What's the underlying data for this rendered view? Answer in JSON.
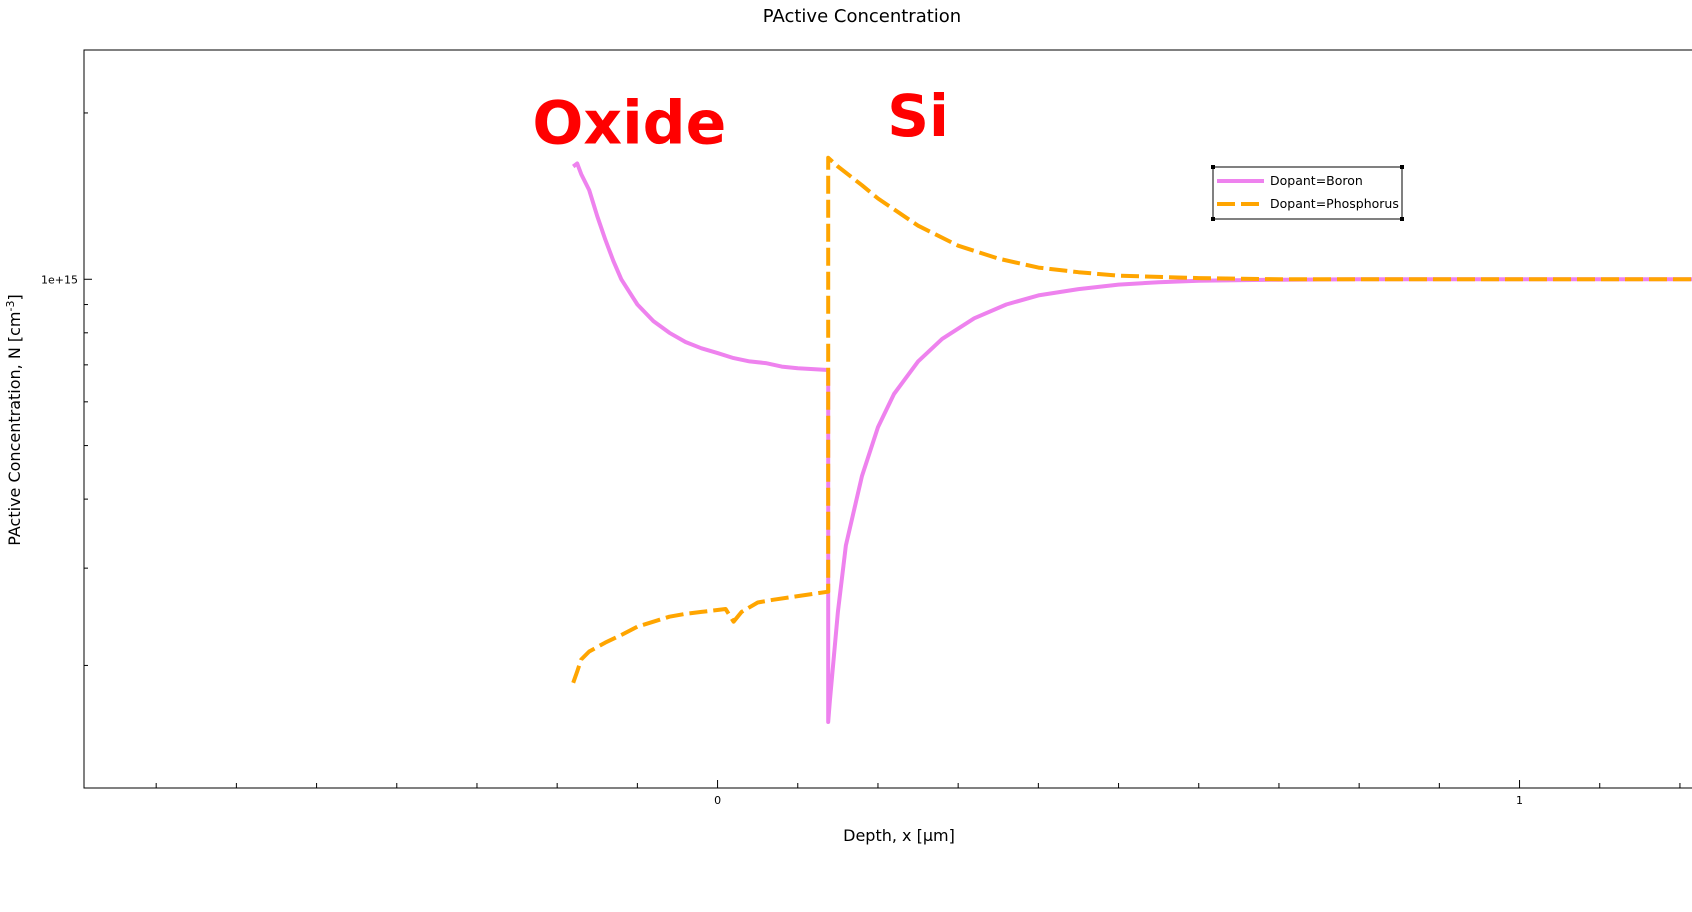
{
  "chart_data": {
    "type": "line",
    "title": "PActive Concentration",
    "xlabel": "Depth, x [μm]",
    "ylabel_main": "PActive Concentration, N [cm",
    "ylabel_sup": "-3",
    "ylabel_close": "]",
    "x_ticks": [
      {
        "value": 0,
        "label": "0"
      },
      {
        "value": 1,
        "label": "1"
      }
    ],
    "x_minor_step": 0.1,
    "xlim": [
      -0.79,
      1.23
    ],
    "y_scale": "log",
    "y_ticks": [
      {
        "value": 1000000000000000.0,
        "label": "1e+15"
      }
    ],
    "y_minor": [
      200000000000000.0,
      300000000000000.0,
      400000000000000.0,
      500000000000000.0,
      600000000000000.0,
      700000000000000.0,
      800000000000000.0,
      900000000000000.0,
      2000000000000000.0
    ],
    "ylim": [
      120000000000000.0,
      2600000000000000.0
    ],
    "annotations": [
      {
        "text": "Oxide",
        "x": -0.11,
        "y": 1930000000000000.0
      },
      {
        "text": "Si",
        "x": 0.25,
        "y": 1990000000000000.0
      }
    ],
    "legend": "top-right",
    "series": [
      {
        "name": "Dopant=Boron",
        "color": "#ee82ee",
        "dash": "solid",
        "points": [
          [
            -0.18,
            1600000000000000.0
          ],
          [
            -0.175,
            1620000000000000.0
          ],
          [
            -0.17,
            1550000000000000.0
          ],
          [
            -0.16,
            1450000000000000.0
          ],
          [
            -0.15,
            1300000000000000.0
          ],
          [
            -0.14,
            1180000000000000.0
          ],
          [
            -0.13,
            1080000000000000.0
          ],
          [
            -0.12,
            1000000000000000.0
          ],
          [
            -0.1,
            900000000000000.0
          ],
          [
            -0.08,
            840000000000000.0
          ],
          [
            -0.06,
            800000000000000.0
          ],
          [
            -0.04,
            770000000000000.0
          ],
          [
            -0.02,
            750000000000000.0
          ],
          [
            0.0,
            735000000000000.0
          ],
          [
            0.02,
            720000000000000.0
          ],
          [
            0.04,
            710000000000000.0
          ],
          [
            0.06,
            705000000000000.0
          ],
          [
            0.08,
            695000000000000.0
          ],
          [
            0.1,
            690000000000000.0
          ],
          [
            0.138,
            685000000000000.0
          ],
          [
            0.138,
            158000000000000.0
          ],
          [
            0.14,
            172000000000000.0
          ],
          [
            0.15,
            250000000000000.0
          ],
          [
            0.16,
            330000000000000.0
          ],
          [
            0.18,
            440000000000000.0
          ],
          [
            0.2,
            540000000000000.0
          ],
          [
            0.22,
            620000000000000.0
          ],
          [
            0.25,
            710000000000000.0
          ],
          [
            0.28,
            780000000000000.0
          ],
          [
            0.32,
            850000000000000.0
          ],
          [
            0.36,
            900000000000000.0
          ],
          [
            0.4,
            935000000000000.0
          ],
          [
            0.45,
            960000000000000.0
          ],
          [
            0.5,
            978000000000000.0
          ],
          [
            0.55,
            988000000000000.0
          ],
          [
            0.6,
            994000000000000.0
          ],
          [
            0.7,
            998000000000000.0
          ],
          [
            0.8,
            1000000000000000.0
          ],
          [
            1.0,
            1000000000000000.0
          ],
          [
            1.23,
            1000000000000000.0
          ]
        ]
      },
      {
        "name": "Dopant=Phosphorus",
        "color": "#ffa500",
        "dash": "dashed",
        "points": [
          [
            -0.18,
            186000000000000.0
          ],
          [
            -0.175,
            195000000000000.0
          ],
          [
            -0.17,
            205000000000000.0
          ],
          [
            -0.16,
            212000000000000.0
          ],
          [
            -0.14,
            220000000000000.0
          ],
          [
            -0.12,
            227000000000000.0
          ],
          [
            -0.1,
            235000000000000.0
          ],
          [
            -0.08,
            240000000000000.0
          ],
          [
            -0.06,
            245000000000000.0
          ],
          [
            -0.04,
            248000000000000.0
          ],
          [
            -0.02,
            250000000000000.0
          ],
          [
            0.01,
            253000000000000.0
          ],
          [
            0.02,
            240000000000000.0
          ],
          [
            0.03,
            250000000000000.0
          ],
          [
            0.05,
            260000000000000.0
          ],
          [
            0.07,
            263000000000000.0
          ],
          [
            0.1,
            267000000000000.0
          ],
          [
            0.138,
            272000000000000.0
          ],
          [
            0.138,
            1660000000000000.0
          ],
          [
            0.15,
            1600000000000000.0
          ],
          [
            0.18,
            1480000000000000.0
          ],
          [
            0.2,
            1400000000000000.0
          ],
          [
            0.25,
            1250000000000000.0
          ],
          [
            0.3,
            1150000000000000.0
          ],
          [
            0.35,
            1090000000000000.0
          ],
          [
            0.4,
            1050000000000000.0
          ],
          [
            0.45,
            1030000000000000.0
          ],
          [
            0.5,
            1015000000000000.0
          ],
          [
            0.6,
            1005000000000000.0
          ],
          [
            0.7,
            1000000000000000.0
          ],
          [
            1.0,
            1000000000000000.0
          ],
          [
            1.23,
            1000000000000000.0
          ]
        ]
      }
    ]
  }
}
